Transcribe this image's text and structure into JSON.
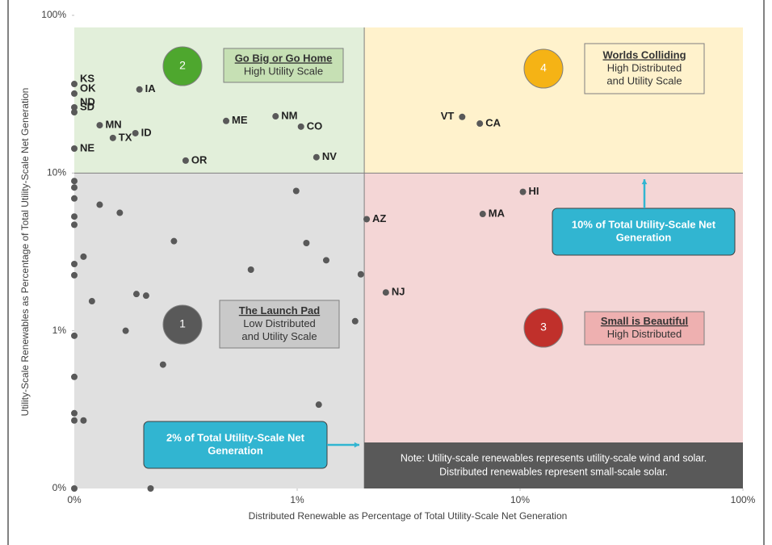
{
  "chart_data": {
    "type": "scatter",
    "xlabel": "Distributed Renewable as Percentage of Total Utility-Scale Net Generation",
    "ylabel": "Utility-Scale Renewables as Percentage of Total Utility-Scale Net Generation",
    "log_x": true,
    "log_y": true,
    "xlim": [
      0.1,
      100
    ],
    "ylim": [
      0.1,
      100
    ],
    "xticks": [
      {
        "value": 0.1,
        "label": "0%"
      },
      {
        "value": 1,
        "label": "1%"
      },
      {
        "value": 10,
        "label": "10%"
      },
      {
        "value": 100,
        "label": "100%"
      }
    ],
    "yticks": [
      {
        "value": 0.1,
        "label": "0%"
      },
      {
        "value": 1,
        "label": "1%"
      },
      {
        "value": 10,
        "label": "10%"
      },
      {
        "value": 100,
        "label": "100%"
      }
    ],
    "point_color": "#595959",
    "x": [
      0.1,
      0.1,
      0.1,
      0.1,
      0.1,
      0.13,
      0.149,
      0.188,
      0.196,
      0.316,
      0.48,
      0.8,
      1.04,
      1.22,
      5.5,
      6.6,
      10.3,
      6.8,
      2.05,
      2.5,
      0.1,
      0.1,
      0.1,
      0.1,
      0.1,
      0.1,
      0.1,
      0.1,
      0.1,
      0.1,
      0.1,
      0.1,
      0.11,
      0.11,
      0.12,
      0.13,
      0.16,
      0.17,
      0.19,
      0.21,
      0.22,
      0.25,
      0.28,
      0.62,
      0.99,
      1.1,
      1.25,
      1.35,
      1.82,
      1.93
    ],
    "y": [
      36.7,
      31.9,
      26.1,
      24.3,
      14.3,
      20.1,
      16.7,
      17.9,
      33.9,
      12.0,
      21.4,
      22.9,
      19.7,
      12.6,
      22.7,
      20.6,
      7.6,
      5.5,
      5.1,
      1.75,
      8.9,
      8.1,
      6.9,
      5.3,
      4.7,
      2.65,
      2.25,
      0.93,
      0.51,
      0.3,
      0.27,
      0.1,
      2.95,
      0.27,
      1.54,
      6.3,
      5.6,
      1.0,
      1.71,
      1.67,
      0.1,
      0.61,
      3.7,
      2.44,
      7.7,
      3.6,
      0.34,
      2.8,
      1.15,
      2.28
    ],
    "point_labels": [
      "KS",
      "OK",
      "ND",
      "SD",
      "NE",
      "MN",
      "TX",
      "ID",
      "IA",
      "OR",
      "ME",
      "NM",
      "CO",
      "NV",
      "VT",
      "CA",
      "HI",
      "MA",
      "AZ",
      "NJ",
      null,
      null,
      null,
      null,
      null,
      null,
      null,
      null,
      null,
      null,
      null,
      null,
      null,
      null,
      null,
      null,
      null,
      null,
      null,
      null,
      null,
      null,
      null,
      null,
      null,
      null,
      null,
      null,
      null,
      null
    ],
    "thresholds": {
      "x": 2,
      "y": 10
    },
    "quadrants": [
      {
        "number": "1",
        "title": "The Launch Pad",
        "lines": [
          "Low Distributed",
          "and Utility Scale"
        ],
        "background": "#e0e0e0",
        "box_color": "#c9c9c9",
        "circle_color": "#595959"
      },
      {
        "number": "2",
        "title": "Go Big or Go Home",
        "lines": [
          "High Utility Scale"
        ],
        "background": "#e2efda",
        "box_color": "#c6e0b4",
        "circle_color": "#4ea72e"
      },
      {
        "number": "3",
        "title": "Small is Beautiful",
        "lines": [
          "High Distributed"
        ],
        "background": "#f4d6d6",
        "box_color": "#eeb0b0",
        "circle_color": "#c0302b"
      },
      {
        "number": "4",
        "title": "Worlds Colliding",
        "lines": [
          "High Distributed",
          "and Utility Scale"
        ],
        "background": "#fff2cc",
        "box_color": "#fff2cc",
        "circle_color": "#f5b315"
      }
    ],
    "callouts": [
      {
        "lines": [
          "10% of Total Utility-Scale Net",
          "Generation"
        ],
        "color": "#31b5d1"
      },
      {
        "lines": [
          "2% of Total Utility-Scale Net",
          "Generation"
        ],
        "color": "#31b5d1"
      }
    ],
    "note": {
      "lines": [
        "Note: Utility-scale renewables represents utility-scale wind and solar.",
        "Distributed renewables represent small-scale solar."
      ],
      "color": "#595959"
    }
  }
}
